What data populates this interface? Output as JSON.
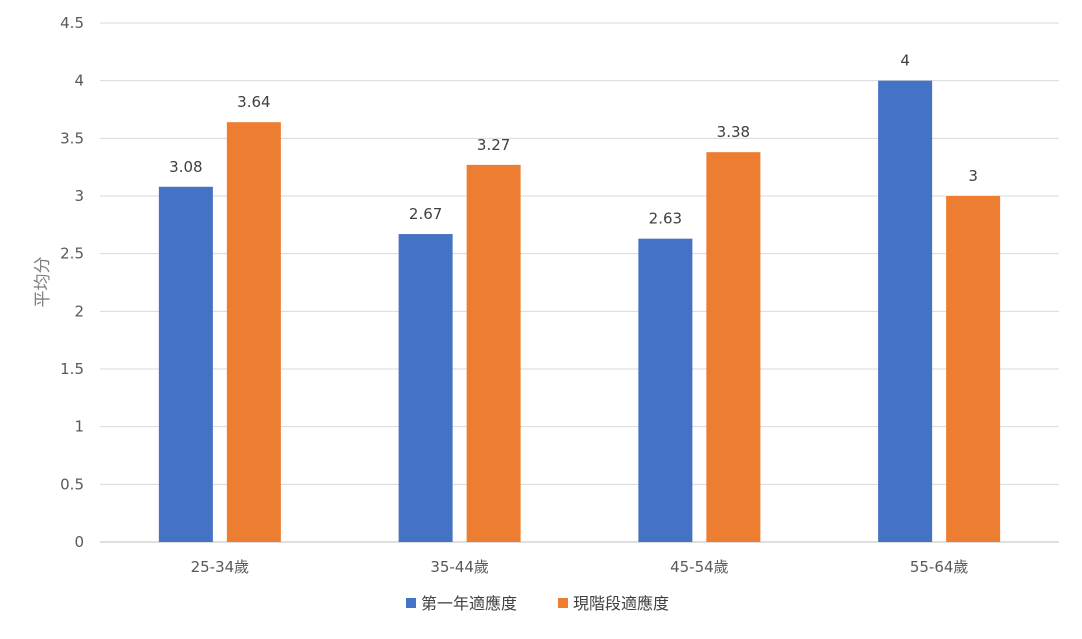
{
  "chart_data": {
    "type": "bar",
    "title": "",
    "xlabel": "",
    "ylabel": "平均分",
    "ylim": [
      0,
      4.5
    ],
    "yticks": [
      "0",
      "0.5",
      "1",
      "1.5",
      "2",
      "2.5",
      "3",
      "3.5",
      "4",
      "4.5"
    ],
    "ytick_values": [
      0,
      0.5,
      1,
      1.5,
      2,
      2.5,
      3,
      3.5,
      4,
      4.5
    ],
    "categories": [
      "25-34歲",
      "35-44歲",
      "45-54歲",
      "55-64歲"
    ],
    "series": [
      {
        "name": "第一年適應度",
        "values": [
          3.08,
          2.67,
          2.63,
          4
        ],
        "labels": [
          "3.08",
          "2.67",
          "2.63",
          "4"
        ],
        "color": "#4472c4"
      },
      {
        "name": "現階段適應度",
        "values": [
          3.64,
          3.27,
          3.38,
          3
        ],
        "labels": [
          "3.64",
          "3.27",
          "3.38",
          "3"
        ],
        "color": "#ed7d31"
      }
    ],
    "grid": true,
    "legend_position": "bottom"
  }
}
